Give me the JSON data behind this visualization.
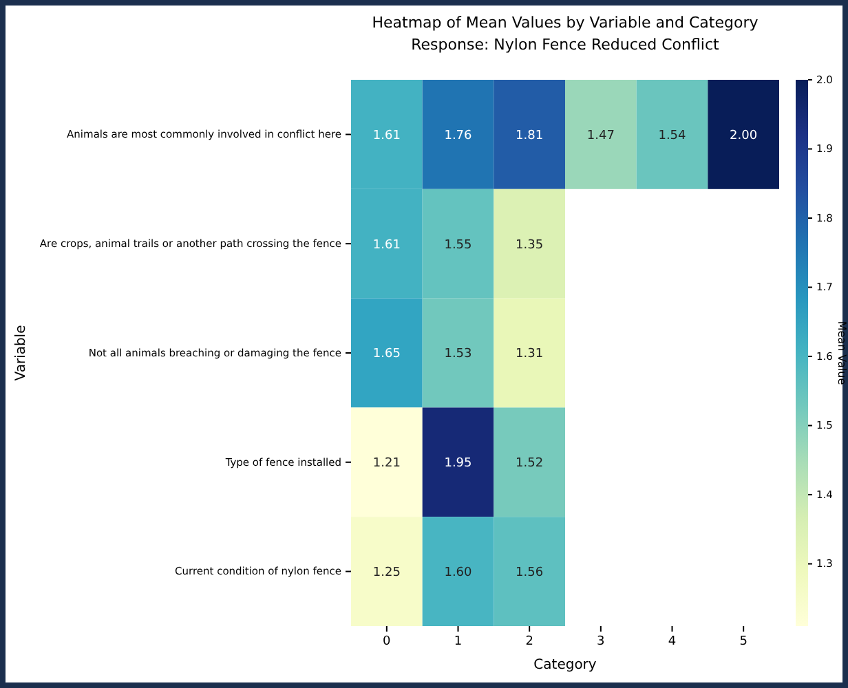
{
  "chart_data": {
    "type": "heatmap",
    "title": "Heatmap of Mean Values by Variable and Category",
    "subtitle": "Response: Nylon Fence Reduced Conflict",
    "xlabel": "Category",
    "ylabel": "Variable",
    "clabel": "Mean Value",
    "categories": [
      "0",
      "1",
      "2",
      "3",
      "4",
      "5"
    ],
    "y_categories": [
      "Animals are most commonly involved in conflict here",
      "Are crops, animal trails or another path crossing the fence",
      "Not all animals breaching or damaging the fence",
      "Type of fence installed",
      "Current condition of nylon fence"
    ],
    "cells": [
      [
        1.61,
        1.76,
        1.81,
        1.47,
        1.54,
        2.0
      ],
      [
        1.61,
        1.55,
        1.35,
        null,
        null,
        null
      ],
      [
        1.65,
        1.53,
        1.31,
        null,
        null,
        null
      ],
      [
        1.21,
        1.95,
        1.52,
        null,
        null,
        null
      ],
      [
        1.25,
        1.6,
        1.56,
        null,
        null,
        null
      ]
    ],
    "cell_labels": [
      [
        "1.61",
        "1.76",
        "1.81",
        "1.47",
        "1.54",
        "2.00"
      ],
      [
        "1.61",
        "1.55",
        "1.35",
        null,
        null,
        null
      ],
      [
        "1.65",
        "1.53",
        "1.31",
        null,
        null,
        null
      ],
      [
        "1.21",
        "1.95",
        "1.52",
        null,
        null,
        null
      ],
      [
        "1.25",
        "1.60",
        "1.56",
        null,
        null,
        null
      ]
    ],
    "data_labels": true,
    "clim": [
      1.21,
      2.0
    ],
    "cticks": [
      {
        "value": 2.0,
        "label": "2.0"
      },
      1.9,
      1.8,
      1.7,
      1.6,
      1.5,
      1.4,
      1.3
    ]
  }
}
